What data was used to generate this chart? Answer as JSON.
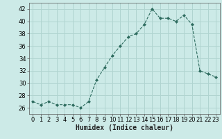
{
  "x": [
    0,
    1,
    2,
    3,
    4,
    5,
    6,
    7,
    8,
    9,
    10,
    11,
    12,
    13,
    14,
    15,
    16,
    17,
    18,
    19,
    20,
    21,
    22,
    23
  ],
  "y": [
    27,
    26.5,
    27,
    26.5,
    26.5,
    26.5,
    26,
    27,
    30.5,
    32.5,
    34.5,
    36,
    37.5,
    38,
    39.5,
    42,
    40.5,
    40.5,
    40,
    41,
    39.5,
    32,
    31.5,
    31
  ],
  "line_color": "#2d6b5e",
  "marker": "D",
  "marker_size": 2.0,
  "bg_color": "#cceae7",
  "grid_color": "#b0d4d0",
  "xlabel": "Humidex (Indice chaleur)",
  "ylim": [
    25,
    43
  ],
  "yticks": [
    26,
    28,
    30,
    32,
    34,
    36,
    38,
    40,
    42
  ],
  "xticks": [
    0,
    1,
    2,
    3,
    4,
    5,
    6,
    7,
    8,
    9,
    10,
    11,
    12,
    13,
    14,
    15,
    16,
    17,
    18,
    19,
    20,
    21,
    22,
    23
  ],
  "xlim": [
    -0.5,
    23.5
  ],
  "tick_fontsize": 6,
  "xlabel_fontsize": 7
}
